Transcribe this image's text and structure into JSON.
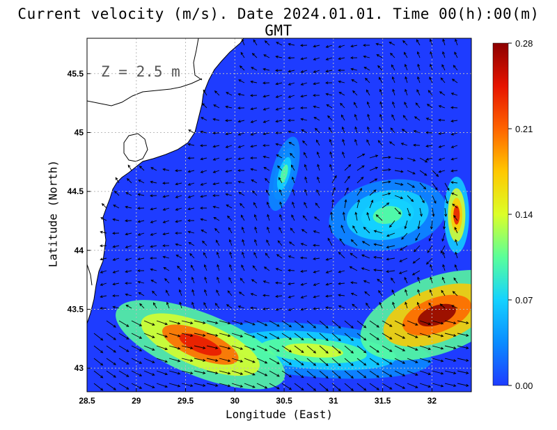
{
  "title": "Current velocity (m/s). Date 2024.01.01. Time 00(h):00(m) GMT",
  "depth_label": "Z = 2.5 m",
  "chart_data": {
    "type": "heatmap",
    "title": "Current velocity (m/s). Date 2024.01.01. Time 00(h):00(m) GMT",
    "xlabel": "Longitude (East)",
    "ylabel": "Latitude (North)",
    "xlim": [
      28.5,
      32.4
    ],
    "ylim": [
      42.8,
      45.8
    ],
    "x_ticks": [
      "28.5",
      "29",
      "29.5",
      "30",
      "30.5",
      "31",
      "31.5",
      "32"
    ],
    "x_tick_values": [
      28.5,
      29,
      29.5,
      30,
      30.5,
      31,
      31.5,
      32
    ],
    "y_ticks": [
      "43",
      "43.5",
      "44",
      "44.5",
      "45",
      "45.5"
    ],
    "y_tick_values": [
      43,
      43.5,
      44,
      44.5,
      45,
      45.5
    ],
    "grid": true,
    "colorbar": {
      "ticks": [
        "0.00",
        "0.07",
        "0.14",
        "0.21",
        "0.28"
      ],
      "min": 0.0,
      "max": 0.28,
      "colors": [
        "#1e3cff",
        "#0a8cff",
        "#14d2ff",
        "#5aff9a",
        "#dcff28",
        "#ffc800",
        "#ff6400",
        "#e61400",
        "#8c0000"
      ]
    },
    "speed_features": [
      {
        "name": "southwest jet",
        "lon": 29.65,
        "lat": 43.2,
        "speed": 0.26
      },
      {
        "name": "southeast jet",
        "lon": 32.05,
        "lat": 43.45,
        "speed": 0.28
      },
      {
        "name": "eastern boundary",
        "lon": 32.25,
        "lat": 44.3,
        "speed": 0.24
      },
      {
        "name": "southern band",
        "lon": 30.8,
        "lat": 43.15,
        "speed": 0.14
      },
      {
        "name": "gyre ring",
        "lon": 31.55,
        "lat": 44.3,
        "speed": 0.1
      },
      {
        "name": "front",
        "lon": 30.5,
        "lat": 44.65,
        "speed": 0.09
      }
    ]
  }
}
